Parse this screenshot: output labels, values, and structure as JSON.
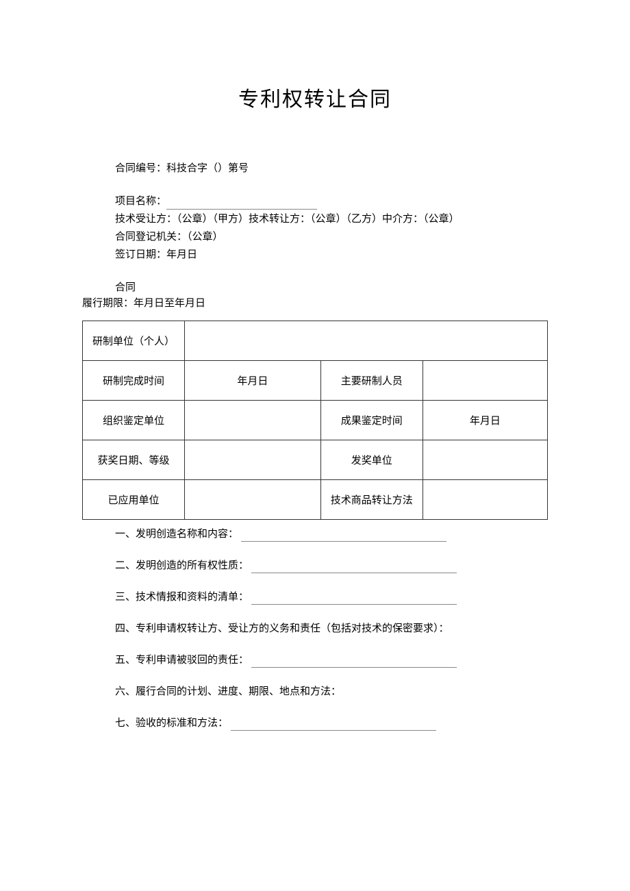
{
  "title": "专利权转让合同",
  "header": {
    "contract_no_label": "合同编号：科技合字（）第号",
    "project_name_label": "项目名称：",
    "parties_label": "技术受让方：（公章）（甲方）技术转让方：（公章）（乙方）中介方：（公章）",
    "registration_label": "合同登记机关：（公章）",
    "sign_date_label": "签订日期：年月日"
  },
  "contract_section_label": "合同",
  "period_label": "履行期限：年月日至年月日",
  "table": {
    "rows": [
      {
        "label": "研制单位（个人）",
        "span": true
      },
      {
        "label": "研制完成时间",
        "value1": "年月日",
        "label2": "主要研制人员",
        "value2": ""
      },
      {
        "label": "组织鉴定单位",
        "value1": "",
        "label2": "成果鉴定时间",
        "value2": "年月日"
      },
      {
        "label": "获奖日期、等级",
        "value1": "",
        "label2": "发奖单位",
        "value2": ""
      },
      {
        "label": "已应用单位",
        "value1": "",
        "label2": "技术商品转让方法",
        "value2": ""
      }
    ]
  },
  "clauses": [
    {
      "text": "一、发明创造名称和内容：",
      "underline": true
    },
    {
      "text": "二、发明创造的所有权性质：",
      "underline": true
    },
    {
      "text": "三、技术情报和资料的清单：",
      "underline": true
    },
    {
      "text": "四、专利申请权转让方、受让方的义务和责任（包括对技术的保密要求）：",
      "underline": false
    },
    {
      "text": "五、专利申请被驳回的责任：",
      "underline": true
    },
    {
      "text": "六、履行合同的计划、进度、期限、地点和方法：",
      "underline": false
    },
    {
      "text": "七、验收的标准和方法：",
      "underline": true
    }
  ],
  "style": {
    "background_color": "#ffffff",
    "text_color": "#000000",
    "border_color": "#333333",
    "underline_color": "#888888",
    "title_fontsize": 30,
    "body_fontsize": 15
  }
}
